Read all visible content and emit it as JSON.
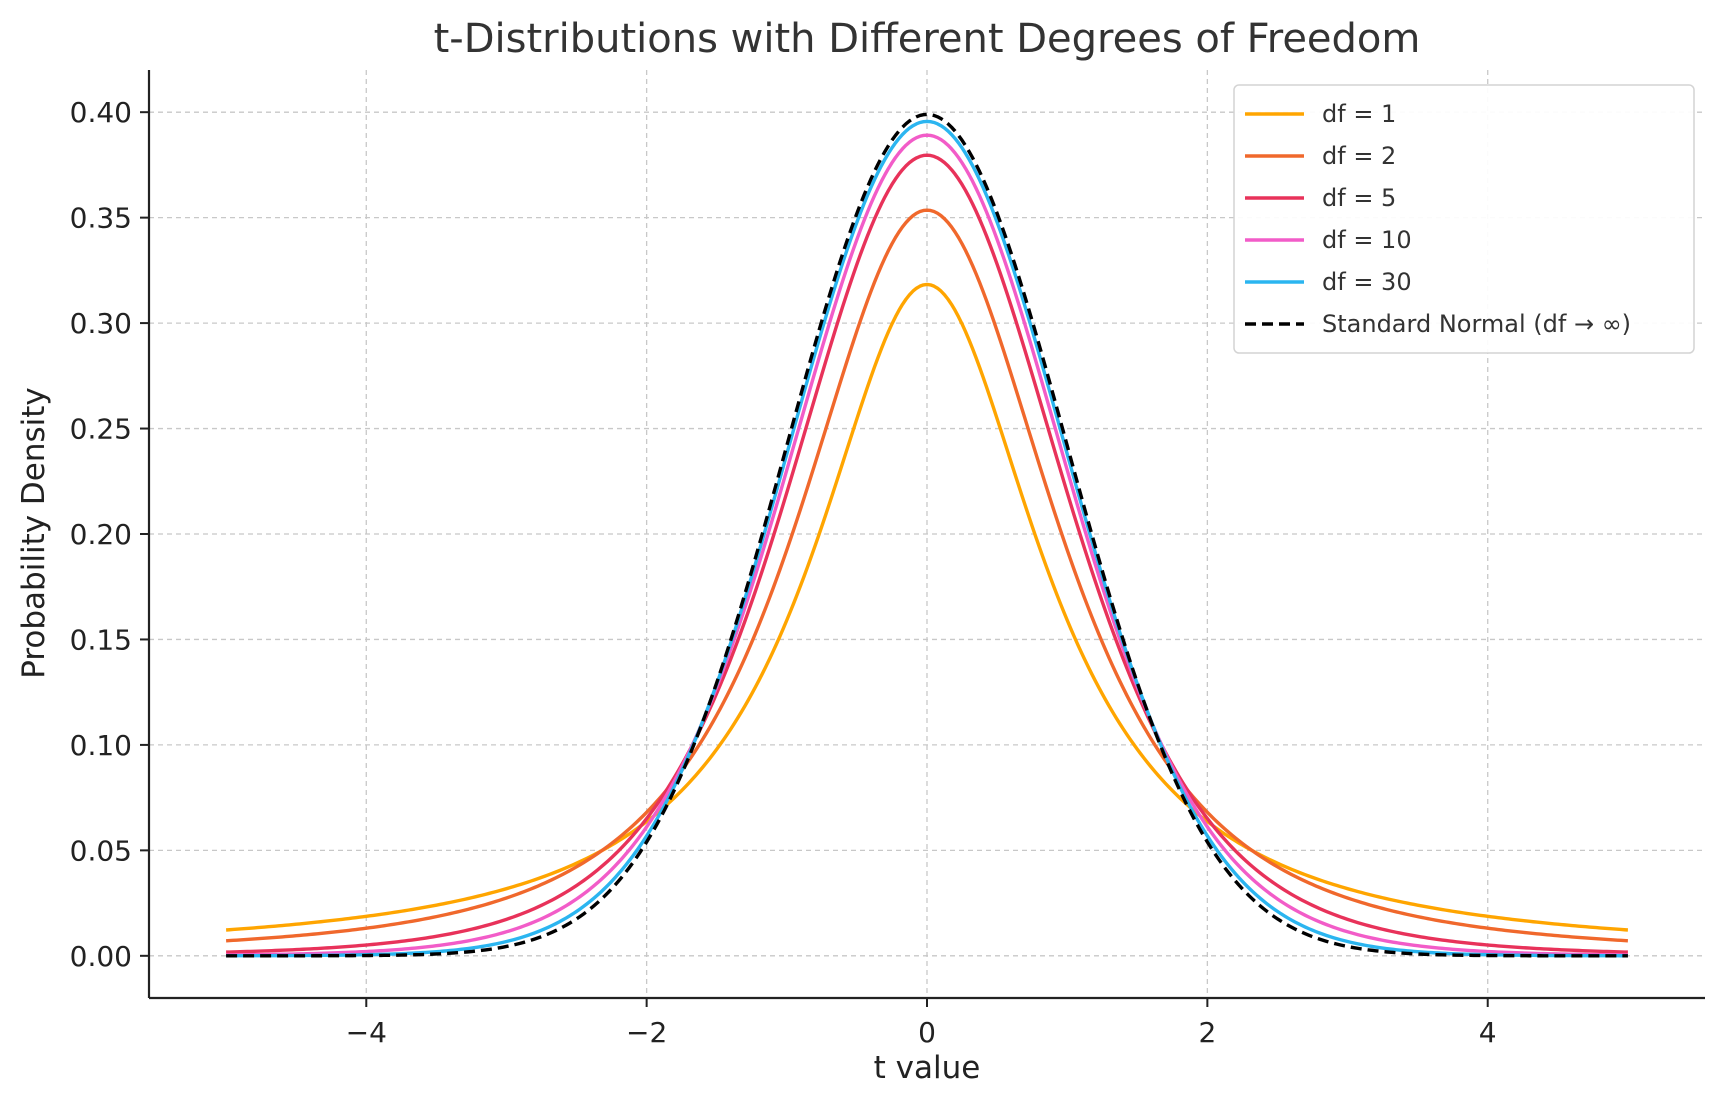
{
  "chart_data": {
    "type": "line",
    "title": "t-Distributions with Different Degrees of Freedom",
    "xlabel": "t value",
    "ylabel": "Probability Density",
    "xlim": [
      -5.55,
      5.55
    ],
    "ylim": [
      -0.02,
      0.42
    ],
    "x_range": [
      -5,
      5
    ],
    "xticks": [
      -4,
      -2,
      0,
      2,
      4
    ],
    "xtick_labels": [
      "−4",
      "−2",
      "0",
      "2",
      "4"
    ],
    "yticks": [
      0.0,
      0.05,
      0.1,
      0.15,
      0.2,
      0.25,
      0.3,
      0.35,
      0.4
    ],
    "ytick_labels": [
      "0.00",
      "0.05",
      "0.10",
      "0.15",
      "0.20",
      "0.25",
      "0.30",
      "0.35",
      "0.40"
    ],
    "grid": true,
    "legend_position": "top-right",
    "series": [
      {
        "name": "df = 1",
        "df": 1,
        "color": "#FFA500",
        "dash": "solid",
        "x": [
          -5,
          -4,
          -3,
          -2,
          -1,
          0,
          1,
          2,
          3,
          4,
          5
        ],
        "y": [
          0.012,
          0.019,
          0.032,
          0.064,
          0.159,
          0.318,
          0.159,
          0.064,
          0.032,
          0.019,
          0.012
        ]
      },
      {
        "name": "df = 2",
        "df": 2,
        "color": "#F0682C",
        "dash": "solid",
        "x": [
          -5,
          -4,
          -3,
          -2,
          -1,
          0,
          1,
          2,
          3,
          4,
          5
        ],
        "y": [
          0.007,
          0.013,
          0.027,
          0.068,
          0.192,
          0.354,
          0.192,
          0.068,
          0.027,
          0.013,
          0.007
        ]
      },
      {
        "name": "df = 5",
        "df": 5,
        "color": "#E8325A",
        "dash": "solid",
        "x": [
          -5,
          -4,
          -3,
          -2,
          -1,
          0,
          1,
          2,
          3,
          4,
          5
        ],
        "y": [
          0.002,
          0.005,
          0.017,
          0.065,
          0.22,
          0.38,
          0.22,
          0.065,
          0.017,
          0.005,
          0.002
        ]
      },
      {
        "name": "df = 10",
        "df": 10,
        "color": "#F25CC8",
        "dash": "solid",
        "x": [
          -5,
          -4,
          -3,
          -2,
          -1,
          0,
          1,
          2,
          3,
          4,
          5
        ],
        "y": [
          0.0004,
          0.002,
          0.011,
          0.061,
          0.23,
          0.389,
          0.23,
          0.061,
          0.011,
          0.002,
          0.0004
        ]
      },
      {
        "name": "df = 30",
        "df": 30,
        "color": "#2BB5F0",
        "dash": "solid",
        "x": [
          -5,
          -4,
          -3,
          -2,
          -1,
          0,
          1,
          2,
          3,
          4,
          5
        ],
        "y": [
          2e-05,
          0.0003,
          0.006,
          0.056,
          0.238,
          0.396,
          0.238,
          0.056,
          0.006,
          0.0003,
          2e-05
        ]
      },
      {
        "name": "Standard Normal (df → ∞)",
        "df": null,
        "color": "#000000",
        "dash": "dashed",
        "x": [
          -5,
          -4,
          -3,
          -2,
          -1,
          0,
          1,
          2,
          3,
          4,
          5
        ],
        "y": [
          1.5e-06,
          0.0001,
          0.004,
          0.054,
          0.242,
          0.399,
          0.242,
          0.054,
          0.004,
          0.0001,
          1.5e-06
        ]
      }
    ]
  }
}
